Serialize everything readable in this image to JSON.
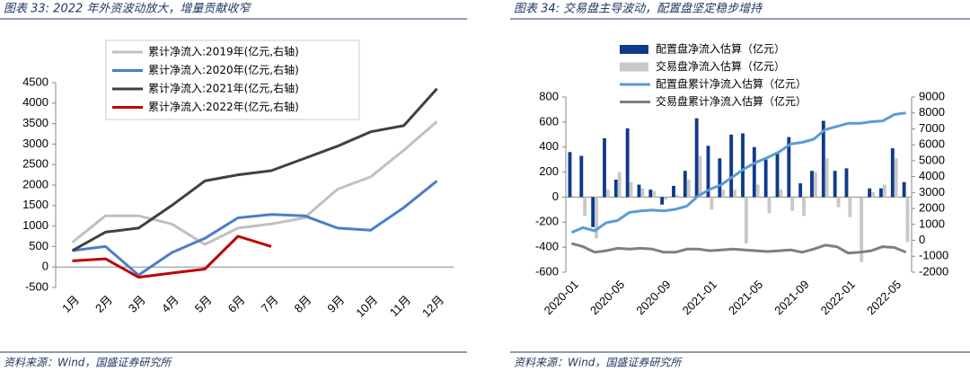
{
  "chart_data": [
    {
      "type": "line",
      "title": "图表 33: 2022 年外资波动放大，增量贡献收窄",
      "source": "资料来源：Wind，国盛证券研究所",
      "categories": [
        "1月",
        "2月",
        "3月",
        "4月",
        "5月",
        "6月",
        "7月",
        "8月",
        "9月",
        "10月",
        "11月",
        "12月"
      ],
      "ylim": [
        -500,
        4500
      ],
      "yticks": [
        -500,
        0,
        500,
        1000,
        1500,
        2000,
        2500,
        3000,
        3500,
        4000,
        4500
      ],
      "legend": "upper left",
      "series": [
        {
          "name": "累计净流入:2019年(亿元,右轴)",
          "color": "#c0c0c0",
          "values": [
            600,
            1250,
            1250,
            1050,
            550,
            950,
            1050,
            1200,
            1900,
            2200,
            2850,
            3550
          ]
        },
        {
          "name": "累计净流入:2020年(亿元,右轴)",
          "color": "#4a7ec8",
          "values": [
            400,
            500,
            -200,
            350,
            700,
            1200,
            1280,
            1250,
            950,
            900,
            1450,
            2100
          ]
        },
        {
          "name": "累计净流入:2021年(亿元,右轴)",
          "color": "#404040",
          "values": [
            400,
            850,
            950,
            1500,
            2100,
            2250,
            2350,
            2650,
            2950,
            3300,
            3450,
            4350
          ]
        },
        {
          "name": "累计净流入:2022年(亿元,右轴)",
          "color": "#c00000",
          "values": [
            150,
            200,
            -250,
            -150,
            -50,
            750,
            500,
            null,
            null,
            null,
            null,
            null
          ]
        }
      ]
    },
    {
      "type": "bar",
      "title": "图表 34: 交易盘主导波动，配置盘坚定稳步增持",
      "source": "资料来源：Wind，国盛证券研究所",
      "categories": [
        "2020-01",
        null,
        null,
        null,
        "2020-05",
        null,
        null,
        null,
        "2020-09",
        null,
        null,
        null,
        "2021-01",
        null,
        null,
        null,
        "2021-05",
        null,
        null,
        null,
        "2021-09",
        null,
        null,
        null,
        "2022-01",
        null,
        null,
        null,
        "2022-05",
        null
      ],
      "ylim": [
        -600,
        800
      ],
      "yticks": [
        -600,
        -400,
        -200,
        0,
        200,
        400,
        600,
        800
      ],
      "y2lim": [
        -2000,
        9000
      ],
      "y2ticks": [
        -2000,
        -1000,
        0,
        1000,
        2000,
        3000,
        4000,
        5000,
        6000,
        7000,
        8000,
        9000
      ],
      "series": [
        {
          "name": "配置盘净流入估算（亿元）",
          "type": "bar",
          "color": "#0e3a8c",
          "values": [
            360,
            330,
            -240,
            470,
            140,
            550,
            100,
            60,
            -60,
            90,
            210,
            630,
            410,
            310,
            500,
            510,
            400,
            300,
            360,
            480,
            110,
            210,
            610,
            210,
            230,
            0,
            70,
            70,
            390,
            120
          ]
        },
        {
          "name": "交易盘净流入估算（亿元）",
          "type": "bar",
          "color": "#c8c8c8",
          "values": [
            0,
            -150,
            -330,
            60,
            200,
            120,
            70,
            50,
            -20,
            20,
            140,
            330,
            -100,
            60,
            60,
            -370,
            100,
            -130,
            60,
            -110,
            -150,
            200,
            310,
            -80,
            -160,
            -520,
            40,
            100,
            310,
            -360
          ]
        },
        {
          "name": "配置盘累计净流入估算（亿元）",
          "type": "line",
          "axis": "y2",
          "color": "#5b9bd5",
          "values": [
            500,
            800,
            600,
            1100,
            1250,
            1750,
            1850,
            1900,
            1850,
            1950,
            2150,
            2800,
            3200,
            3500,
            4000,
            4500,
            4900,
            5200,
            5550,
            6050,
            6150,
            6350,
            6950,
            7150,
            7350,
            7350,
            7450,
            7500,
            7900,
            8000
          ]
        },
        {
          "name": "交易盘累计净流入估算（亿元）",
          "type": "line",
          "axis": "y2",
          "color": "#7f7f7f",
          "values": [
            -200,
            -400,
            -750,
            -650,
            -500,
            -550,
            -500,
            -550,
            -750,
            -750,
            -550,
            -550,
            -650,
            -600,
            -550,
            -600,
            -650,
            -700,
            -650,
            -600,
            -750,
            -550,
            -300,
            -400,
            -800,
            -750,
            -650,
            -400,
            -450,
            -750
          ]
        }
      ]
    }
  ]
}
